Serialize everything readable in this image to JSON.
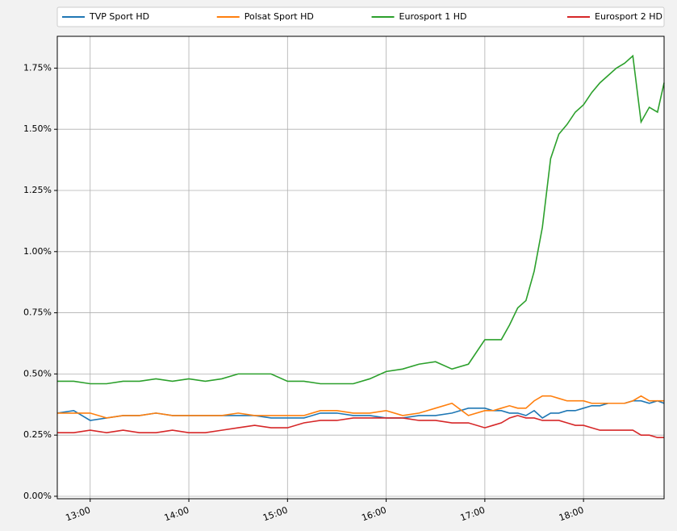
{
  "chart_data": {
    "type": "line",
    "x": [
      760,
      770,
      780,
      790,
      800,
      810,
      820,
      830,
      840,
      850,
      860,
      870,
      880,
      890,
      900,
      910,
      920,
      930,
      940,
      950,
      960,
      970,
      980,
      990,
      1000,
      1010,
      1020,
      1025,
      1030,
      1035,
      1040,
      1045,
      1050,
      1055,
      1060,
      1065,
      1070,
      1075,
      1080,
      1085,
      1090,
      1095,
      1100,
      1105,
      1110,
      1115,
      1120,
      1125,
      1129
    ],
    "series": [
      {
        "name": "TVP Sport HD",
        "color": "#1f77b4",
        "values": [
          0.34,
          0.35,
          0.31,
          0.32,
          0.33,
          0.33,
          0.34,
          0.33,
          0.33,
          0.33,
          0.33,
          0.33,
          0.33,
          0.32,
          0.32,
          0.32,
          0.34,
          0.34,
          0.33,
          0.33,
          0.32,
          0.32,
          0.33,
          0.33,
          0.34,
          0.36,
          0.36,
          0.35,
          0.35,
          0.34,
          0.34,
          0.33,
          0.35,
          0.32,
          0.34,
          0.34,
          0.35,
          0.35,
          0.36,
          0.37,
          0.37,
          0.38,
          0.38,
          0.38,
          0.39,
          0.39,
          0.38,
          0.39,
          0.38
        ]
      },
      {
        "name": "Polsat Sport HD",
        "color": "#ff7f0e",
        "values": [
          0.34,
          0.34,
          0.34,
          0.32,
          0.33,
          0.33,
          0.34,
          0.33,
          0.33,
          0.33,
          0.33,
          0.34,
          0.33,
          0.33,
          0.33,
          0.33,
          0.35,
          0.35,
          0.34,
          0.34,
          0.35,
          0.33,
          0.34,
          0.36,
          0.38,
          0.33,
          0.35,
          0.35,
          0.36,
          0.37,
          0.36,
          0.36,
          0.39,
          0.41,
          0.41,
          0.4,
          0.39,
          0.39,
          0.39,
          0.38,
          0.38,
          0.38,
          0.38,
          0.38,
          0.39,
          0.41,
          0.39,
          0.39,
          0.39
        ]
      },
      {
        "name": "Eurosport 1 HD",
        "color": "#2ca02c",
        "values": [
          0.47,
          0.47,
          0.46,
          0.46,
          0.47,
          0.47,
          0.48,
          0.47,
          0.48,
          0.47,
          0.48,
          0.5,
          0.5,
          0.5,
          0.47,
          0.47,
          0.46,
          0.46,
          0.46,
          0.48,
          0.51,
          0.52,
          0.54,
          0.55,
          0.52,
          0.54,
          0.64,
          0.64,
          0.64,
          0.7,
          0.77,
          0.8,
          0.92,
          1.1,
          1.38,
          1.48,
          1.52,
          1.57,
          1.6,
          1.65,
          1.69,
          1.72,
          1.75,
          1.77,
          1.8,
          1.53,
          1.59,
          1.57,
          1.69
        ]
      },
      {
        "name": "Eurosport 2 HD",
        "color": "#d62728",
        "values": [
          0.26,
          0.26,
          0.27,
          0.26,
          0.27,
          0.26,
          0.26,
          0.27,
          0.26,
          0.26,
          0.27,
          0.28,
          0.29,
          0.28,
          0.28,
          0.3,
          0.31,
          0.31,
          0.32,
          0.32,
          0.32,
          0.32,
          0.31,
          0.31,
          0.3,
          0.3,
          0.28,
          0.29,
          0.3,
          0.32,
          0.33,
          0.32,
          0.32,
          0.31,
          0.31,
          0.31,
          0.3,
          0.29,
          0.29,
          0.28,
          0.27,
          0.27,
          0.27,
          0.27,
          0.27,
          0.25,
          0.25,
          0.24,
          0.24
        ]
      }
    ],
    "xlim": [
      760,
      1129
    ],
    "xticks": [
      {
        "value": 780,
        "label": "13:00"
      },
      {
        "value": 840,
        "label": "14:00"
      },
      {
        "value": 900,
        "label": "15:00"
      },
      {
        "value": 960,
        "label": "16:00"
      },
      {
        "value": 1020,
        "label": "17:00"
      },
      {
        "value": 1080,
        "label": "18:00"
      }
    ],
    "ylim": [
      -0.01,
      1.88
    ],
    "yticks": [
      {
        "value": 0,
        "label": "0.00%"
      },
      {
        "value": 0.25,
        "label": "0.25%"
      },
      {
        "value": 0.5,
        "label": "0.50%"
      },
      {
        "value": 0.75,
        "label": "0.75%"
      },
      {
        "value": 1.0,
        "label": "1.00%"
      },
      {
        "value": 1.25,
        "label": "1.25%"
      },
      {
        "value": 1.5,
        "label": "1.50%"
      },
      {
        "value": 1.75,
        "label": "1.75%"
      }
    ],
    "grid": true,
    "legend": "top"
  }
}
